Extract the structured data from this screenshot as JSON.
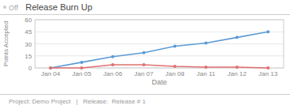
{
  "chart_data": {
    "type": "line",
    "title": "Release Burn Up",
    "x_label": "Date",
    "y_label": "Points Accepted",
    "annotations": [
      "Off",
      "Project: Demo Project   |   Release:  Release # 1"
    ],
    "categories": [
      "Jan 04",
      "Jan 05",
      "Jan 06",
      "Jan 07",
      "Jan 08",
      "Jan 11",
      "Jan 12",
      "Jan 13"
    ],
    "series": [
      {
        "color": "#5b9bd5",
        "marker": "circle",
        "values": [
          0,
          7,
          14,
          19,
          27,
          31,
          38,
          45
        ]
      },
      {
        "color": "#e07070",
        "marker": "circle",
        "values": [
          0,
          0,
          4,
          4,
          2,
          1,
          1,
          0
        ]
      }
    ],
    "ylim": [
      0,
      60
    ],
    "yticks": [
      0,
      15,
      30,
      45,
      60
    ],
    "grid": true
  }
}
